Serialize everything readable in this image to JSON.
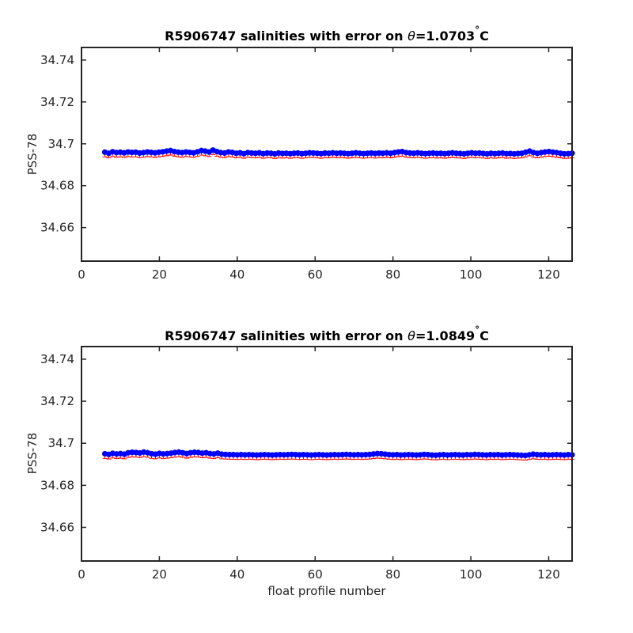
{
  "chart_data": [
    {
      "type": "scatter",
      "title_prefix": "R5906747 salinities with error on ",
      "title_theta": "θ",
      "title_value": "=1.0703",
      "title_degree": "°",
      "title_unit": "C",
      "ylabel": "PSS-78",
      "xlabel": "",
      "xlim": [
        0,
        126
      ],
      "ylim": [
        34.644,
        34.746
      ],
      "xticks": [
        0,
        20,
        40,
        60,
        80,
        100,
        120
      ],
      "yticks": [
        34.66,
        34.68,
        34.7,
        34.72,
        34.74
      ],
      "ytick_labels": [
        "34.66",
        "34.68",
        "34.7",
        "34.72",
        "34.74"
      ],
      "grid": false,
      "colors": {
        "points": "#0000ff",
        "errors": "#ff0000",
        "axes": "#262626"
      },
      "x_start": 6,
      "x_end": 126,
      "values": [
        34.696,
        34.6955,
        34.6962,
        34.6958,
        34.696,
        34.6957,
        34.6961,
        34.6959,
        34.696,
        34.6956,
        34.6958,
        34.6961,
        34.6959,
        34.6957,
        34.696,
        34.6962,
        34.6965,
        34.6968,
        34.6963,
        34.696,
        34.6958,
        34.6961,
        34.6959,
        34.6957,
        34.6962,
        34.6968,
        34.6965,
        34.6961,
        34.697,
        34.6963,
        34.6958,
        34.6956,
        34.6961,
        34.6959,
        34.6955,
        34.6957,
        34.6953,
        34.6958,
        34.6956,
        34.6955,
        34.6957,
        34.6953,
        34.6956,
        34.6955,
        34.6952,
        34.6956,
        34.6954,
        34.6955,
        34.6953,
        34.6955,
        34.6956,
        34.6953,
        34.6955,
        34.6957,
        34.6956,
        34.6955,
        34.6953,
        34.6956,
        34.6955,
        34.6957,
        34.6955,
        34.6956,
        34.6955,
        34.6953,
        34.6955,
        34.6957,
        34.6955,
        34.6953,
        34.6955,
        34.6956,
        34.6954,
        34.6956,
        34.6955,
        34.6957,
        34.6955,
        34.6958,
        34.6961,
        34.6963,
        34.6958,
        34.6956,
        34.6955,
        34.6957,
        34.6955,
        34.6953,
        34.6955,
        34.6956,
        34.6954,
        34.6955,
        34.6953,
        34.6955,
        34.6957,
        34.6955,
        34.6954,
        34.6952,
        34.6955,
        34.6957,
        34.6955,
        34.6956,
        34.6954,
        34.6952,
        34.6955,
        34.6953,
        34.6955,
        34.6956,
        34.6953,
        34.6954,
        34.6952,
        34.6954,
        34.6955,
        34.696,
        34.6965,
        34.6958,
        34.6955,
        34.6958,
        34.6961,
        34.6963,
        34.696,
        34.6958,
        34.6955,
        34.6952,
        34.6953,
        34.6955
      ]
    },
    {
      "type": "scatter",
      "title_prefix": "R5906747 salinities with error on ",
      "title_theta": "θ",
      "title_value": "=1.0849",
      "title_degree": "°",
      "title_unit": "C",
      "ylabel": "PSS-78",
      "xlabel": "float profile number",
      "xlim": [
        0,
        126
      ],
      "ylim": [
        34.644,
        34.746
      ],
      "xticks": [
        0,
        20,
        40,
        60,
        80,
        100,
        120
      ],
      "yticks": [
        34.66,
        34.68,
        34.7,
        34.72,
        34.74
      ],
      "ytick_labels": [
        "34.66",
        "34.68",
        "34.7",
        "34.72",
        "34.74"
      ],
      "grid": false,
      "colors": {
        "points": "#0000ff",
        "errors": "#ff0000",
        "axes": "#262626"
      },
      "x_start": 6,
      "x_end": 126,
      "values": [
        34.695,
        34.6947,
        34.6952,
        34.6949,
        34.6951,
        34.6948,
        34.6955,
        34.6957,
        34.6956,
        34.6954,
        34.6958,
        34.6955,
        34.695,
        34.6948,
        34.6952,
        34.6949,
        34.6951,
        34.6953,
        34.6956,
        34.6958,
        34.6955,
        34.6951,
        34.6955,
        34.6957,
        34.6956,
        34.6953,
        34.6955,
        34.6951,
        34.6949,
        34.6953,
        34.6948,
        34.6947,
        34.6946,
        34.6946,
        34.6945,
        34.6946,
        34.6945,
        34.6946,
        34.6945,
        34.6944,
        34.6945,
        34.6946,
        34.6945,
        34.6944,
        34.6945,
        34.6946,
        34.6945,
        34.6946,
        34.6947,
        34.6946,
        34.6945,
        34.6946,
        34.6945,
        34.6944,
        34.6945,
        34.6946,
        34.6945,
        34.6944,
        34.6945,
        34.6946,
        34.6945,
        34.6946,
        34.6947,
        34.6946,
        34.6945,
        34.6946,
        34.6945,
        34.6946,
        34.6947,
        34.6949,
        34.6951,
        34.695,
        34.6948,
        34.6946,
        34.6945,
        34.6946,
        34.6944,
        34.6945,
        34.6946,
        34.6945,
        34.6944,
        34.6945,
        34.6947,
        34.6946,
        34.6944,
        34.6943,
        34.6945,
        34.6946,
        34.6944,
        34.6945,
        34.6946,
        34.6945,
        34.6944,
        34.6946,
        34.6945,
        34.6947,
        34.6946,
        34.6945,
        34.6944,
        34.6946,
        34.6945,
        34.6946,
        34.6944,
        34.6945,
        34.6946,
        34.6945,
        34.6944,
        34.6943,
        34.6942,
        34.6945,
        34.6948,
        34.6946,
        34.6945,
        34.6946,
        34.6944,
        34.6945,
        34.6946,
        34.6945,
        34.6944,
        34.6946,
        34.6945
      ]
    }
  ]
}
